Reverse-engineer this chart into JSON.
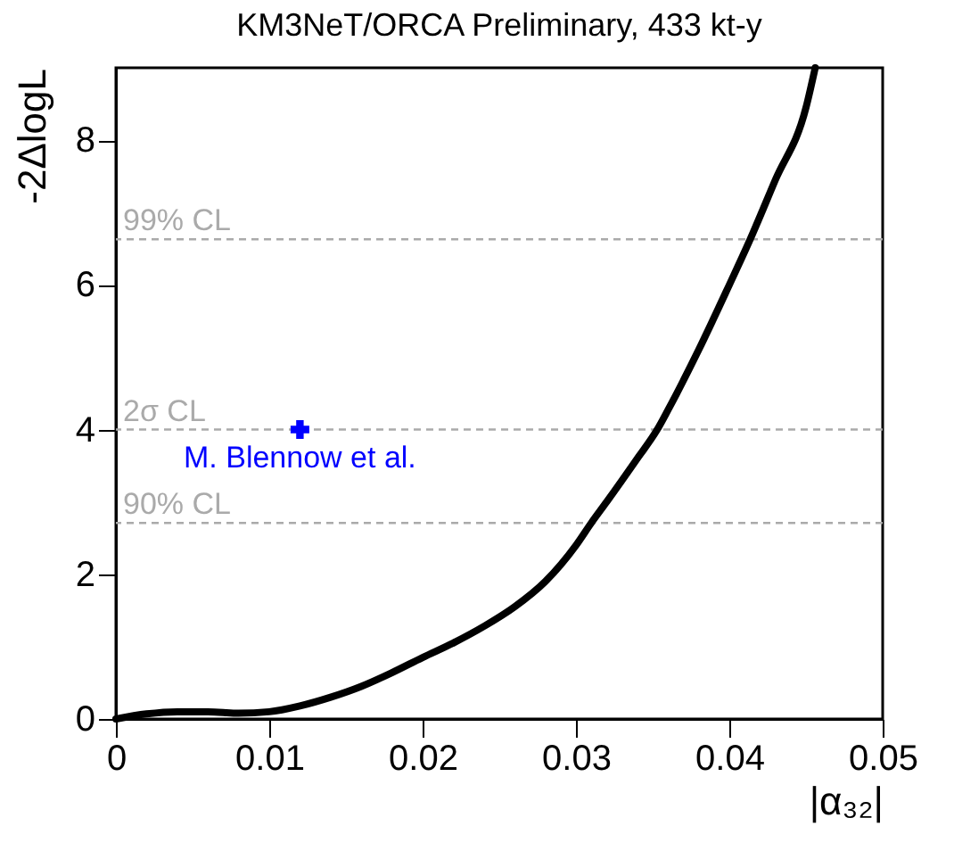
{
  "chart_data": {
    "type": "line",
    "title": "KM3NeT/ORCA Preliminary, 433 kt-y",
    "xlabel": "|α₃₂|",
    "ylabel": "-2ΔlogL",
    "xlim": [
      0,
      0.05
    ],
    "xticks": [
      0,
      0.01,
      0.02,
      0.03,
      0.04,
      0.05
    ],
    "ylim": [
      0,
      9
    ],
    "yticks": [
      0,
      2,
      4,
      6,
      8
    ],
    "grid": false,
    "series": [
      {
        "type": "line",
        "color": "#000000",
        "line_style": "solid",
        "marker": "none",
        "x": [
          0,
          0.002,
          0.004,
          0.006,
          0.008,
          0.01,
          0.012,
          0.014,
          0.016,
          0.018,
          0.02,
          0.022,
          0.024,
          0.026,
          0.028,
          0.03,
          0.031,
          0.032,
          0.034,
          0.0353,
          0.036,
          0.038,
          0.04,
          0.0413,
          0.043,
          0.045,
          0.0456
        ],
        "values": [
          0,
          0.07,
          0.1,
          0.1,
          0.08,
          0.1,
          0.18,
          0.3,
          0.45,
          0.64,
          0.85,
          1.05,
          1.28,
          1.55,
          1.9,
          2.4,
          2.71,
          3.0,
          3.6,
          4.0,
          4.27,
          5.1,
          6.0,
          6.6,
          7.45,
          8.45,
          9.0
        ]
      },
      {
        "type": "scatter",
        "name": "M. Blennow et al.",
        "color": "#0000ff",
        "marker": "cross",
        "x": [
          0.012
        ],
        "values": [
          4
        ]
      }
    ],
    "ref_lines": [
      {
        "axis": "y",
        "value": 6.63,
        "label": "99% CL",
        "color": "#aaaaaa",
        "line_style": "dashed"
      },
      {
        "axis": "y",
        "value": 4,
        "label": "2σ CL",
        "color": "#aaaaaa",
        "line_style": "dashed"
      },
      {
        "axis": "y",
        "value": 2.71,
        "label": "90% CL",
        "color": "#aaaaaa",
        "line_style": "dashed"
      }
    ]
  }
}
